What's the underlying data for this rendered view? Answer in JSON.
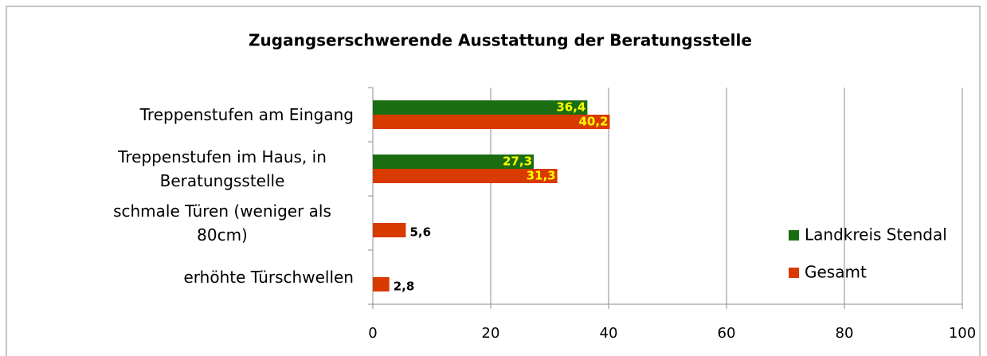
{
  "chart_data": {
    "type": "barh",
    "title": "Zugangserschwerende Ausstattung der Beratungsstelle",
    "categories": [
      "Treppenstufen am Eingang",
      "Treppenstufen im Haus, in Beratungsstelle",
      "schmale Türen (weniger als 80cm)",
      "erhöhte Türschwellen"
    ],
    "series": [
      {
        "name": "Landkreis Stendal",
        "color": "#1b6d12",
        "values": [
          36.4,
          27.3,
          null,
          null
        ],
        "value_labels": [
          "36,4",
          "27,3",
          null,
          null
        ]
      },
      {
        "name": "Gesamt",
        "color": "#d93a00",
        "values": [
          40.2,
          31.3,
          5.6,
          2.8
        ],
        "value_labels": [
          "40,2",
          "31,3",
          "5,6",
          "2,8"
        ]
      }
    ],
    "xlim": [
      0,
      100
    ],
    "xticks": [
      0,
      20,
      40,
      60,
      80,
      100
    ],
    "grid": true,
    "legend": "right"
  }
}
